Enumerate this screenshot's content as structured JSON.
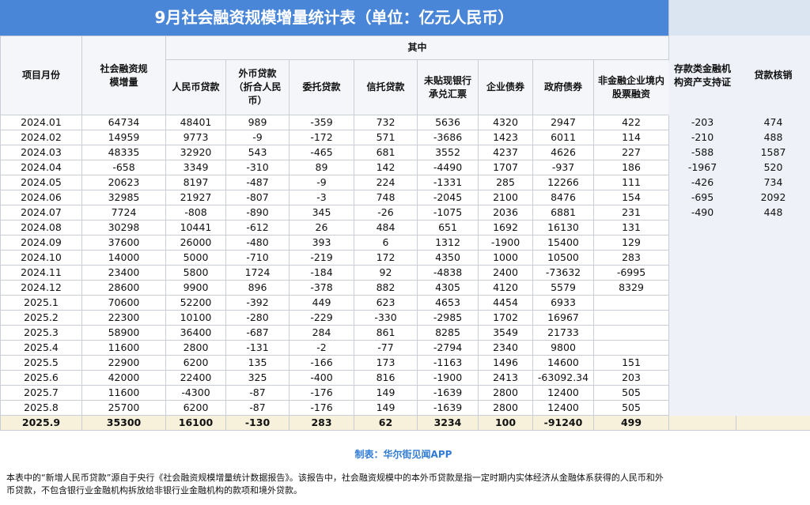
{
  "title": "9月社会融资规模增量统计表（单位：亿元人民币）",
  "header": {
    "month": "项目月份",
    "total": "社会融资规模增量",
    "group": "其中",
    "columns": [
      "人民币贷款",
      "外币贷款（折合人民币）",
      "委托贷款",
      "信托贷款",
      "未贴现银行承兑汇票",
      "企业债券",
      "政府债券",
      "非金融企业境内股票融资",
      "存款类金融机构资产支持证",
      "贷款核销"
    ]
  },
  "rows": [
    [
      "2024.01",
      64734,
      48401,
      989,
      -359,
      732,
      5636,
      4320,
      2947,
      422,
      -203,
      474
    ],
    [
      "2024.02",
      14959,
      9773,
      -9,
      -172,
      571,
      -3686,
      1423,
      6011,
      114,
      -210,
      488
    ],
    [
      "2024.03",
      48335,
      32920,
      543,
      -465,
      681,
      3552,
      4237,
      4626,
      227,
      -588,
      1587
    ],
    [
      "2024.04",
      -658,
      3349,
      -310,
      89,
      142,
      -4490,
      1707,
      -937,
      186,
      -1967,
      520
    ],
    [
      "2024.05",
      20623,
      8197,
      -487,
      -9,
      224,
      -1331,
      285,
      12266,
      111,
      -426,
      734
    ],
    [
      "2024.06",
      32985,
      21927,
      -807,
      -3,
      748,
      -2045,
      2100,
      8476,
      154,
      -695,
      2092
    ],
    [
      "2024.07",
      7724,
      -808,
      -890,
      345,
      -26,
      -1075,
      2036,
      6881,
      231,
      -490,
      448
    ],
    [
      "2024.08",
      30298,
      10441,
      -612,
      26,
      484,
      651,
      1692,
      16130,
      131,
      null,
      null
    ],
    [
      "2024.09",
      37600,
      26000,
      -480,
      393,
      6,
      1312,
      -1900,
      15400,
      129,
      null,
      null
    ],
    [
      "2024.10",
      14000,
      5000,
      -710,
      -219,
      172,
      4350,
      1000,
      10500,
      283,
      null,
      null
    ],
    [
      "2024.11",
      23400,
      5800,
      1724,
      -184,
      92,
      -4838,
      2400,
      -73632,
      -6995,
      null,
      null
    ],
    [
      "2024.12",
      28600,
      9900,
      896,
      -378,
      882,
      4305,
      4120,
      5579,
      8329,
      null,
      null
    ],
    [
      "2025.1",
      70600,
      52200,
      -392,
      449,
      623,
      4653,
      4454,
      6933,
      null,
      null,
      null
    ],
    [
      "2025.2",
      22300,
      10100,
      -280,
      -229,
      -330,
      -2985,
      1702,
      16967,
      null,
      null,
      null
    ],
    [
      "2025.3",
      58900,
      36400,
      -687,
      284,
      861,
      8285,
      3549,
      21733,
      null,
      null,
      null
    ],
    [
      "2025.4",
      11600,
      2800,
      -131,
      -2,
      -77,
      -2794,
      2340,
      9800,
      null,
      null,
      null
    ],
    [
      "2025.5",
      22900,
      6200,
      135,
      -166,
      173,
      -1163,
      1496,
      14600,
      151,
      null,
      null
    ],
    [
      "2025.6",
      42000,
      22400,
      325,
      -400,
      816,
      -1900,
      2413,
      -63092.34,
      203,
      null,
      null
    ],
    [
      "2025.7",
      11600,
      -4300,
      -87,
      -176,
      149,
      -1639,
      2800,
      12400,
      505,
      null,
      null
    ],
    [
      "2025.8",
      25700,
      6200,
      -87,
      -176,
      149,
      -1639,
      2800,
      12400,
      505,
      null,
      null
    ],
    [
      "2025.9",
      35300,
      16100,
      -130,
      283,
      62,
      3234,
      100,
      -91240,
      499,
      null,
      null
    ]
  ],
  "footer": {
    "credit": "制表：华尔街见闻APP",
    "note": "本表中的“新增人民币贷款”源自于央行《社会融资规模增量统计数据报告》。该报告中，社会融资规模中的本外币贷款是指一定时期内实体经济从金融体系获得的人民币和外币贷款，不包含银行业金融机构拆放给非银行业金融机构的款项和境外贷款。"
  }
}
